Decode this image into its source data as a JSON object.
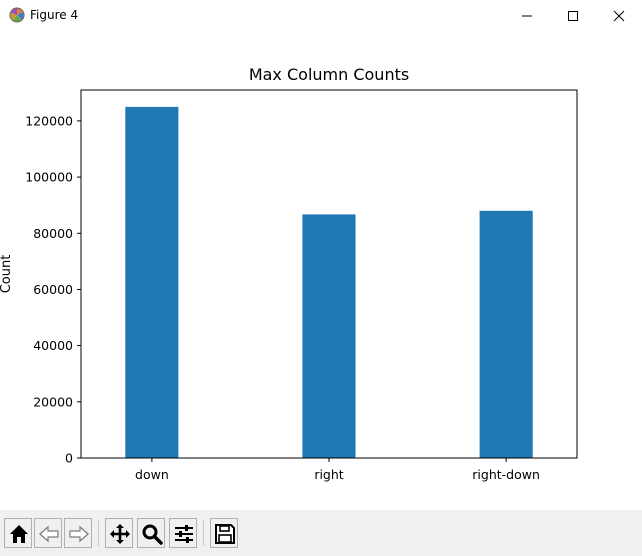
{
  "window": {
    "title": "Figure 4"
  },
  "icons": {
    "app": "matplotlib-figure-icon",
    "minimize": "minimize-icon",
    "maximize": "maximize-icon",
    "close": "close-icon"
  },
  "toolbar": {
    "buttons": [
      {
        "name": "home-button",
        "icon": "home-icon"
      },
      {
        "name": "back-button",
        "icon": "arrow-left-icon"
      },
      {
        "name": "forward-button",
        "icon": "arrow-right-icon"
      },
      {
        "name": "pan-button",
        "icon": "move-icon"
      },
      {
        "name": "zoom-button",
        "icon": "magnifier-icon"
      },
      {
        "name": "configure-subplots-button",
        "icon": "sliders-icon"
      },
      {
        "name": "save-button",
        "icon": "floppy-disk-icon"
      }
    ]
  },
  "chart_data": {
    "type": "bar",
    "title": "Max Column Counts",
    "xlabel": "",
    "ylabel": "Count",
    "categories": [
      "down",
      "right",
      "right-down"
    ],
    "values": [
      125000,
      86700,
      88000
    ],
    "ylim": [
      0,
      131000
    ],
    "yticks": [
      0,
      20000,
      40000,
      60000,
      80000,
      100000,
      120000
    ],
    "ytick_labels": [
      "0",
      "20000",
      "40000",
      "60000",
      "80000",
      "100000",
      "120000"
    ],
    "bar_color": "#1f77b4",
    "grid": false,
    "legend": "none"
  }
}
